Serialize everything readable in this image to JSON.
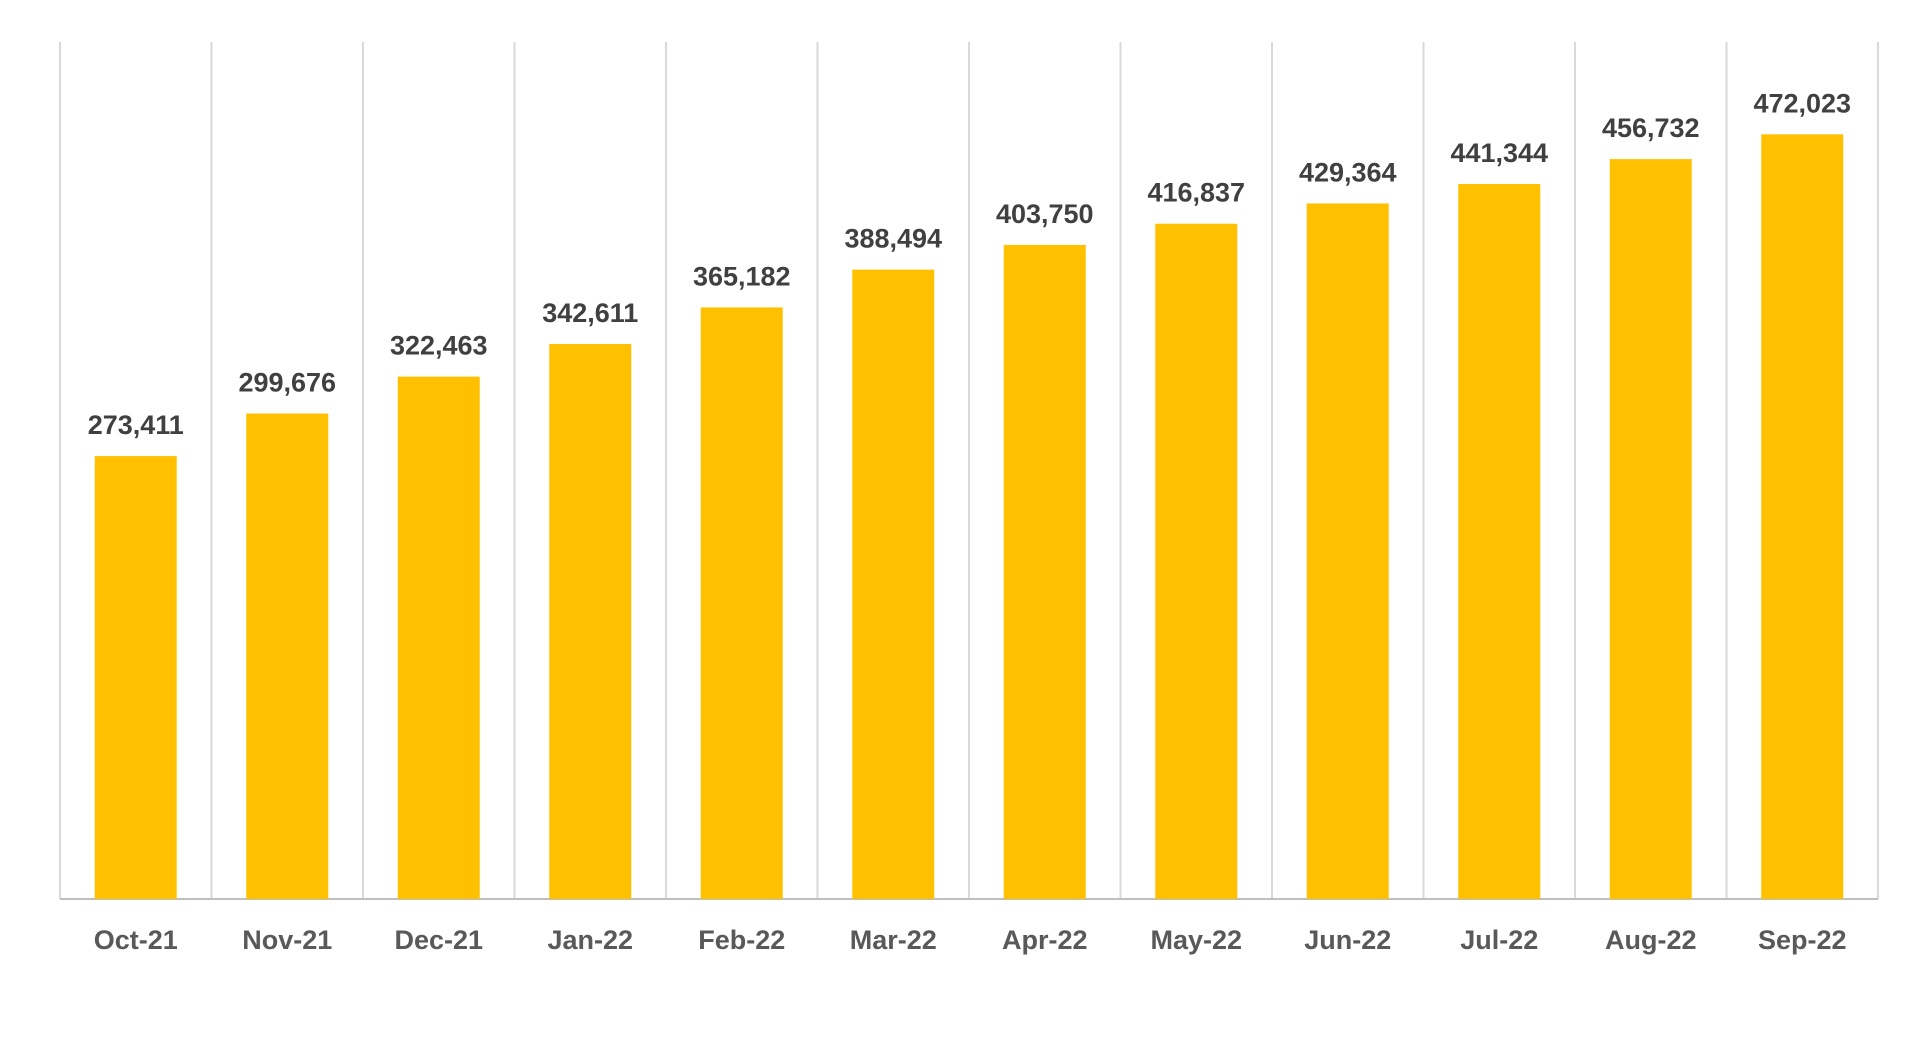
{
  "chart_data": {
    "type": "bar",
    "categories": [
      "Oct-21",
      "Nov-21",
      "Dec-21",
      "Jan-22",
      "Feb-22",
      "Mar-22",
      "Apr-22",
      "May-22",
      "Jun-22",
      "Jul-22",
      "Aug-22",
      "Sep-22"
    ],
    "values": [
      273411,
      299676,
      322463,
      342611,
      365182,
      388494,
      403750,
      416837,
      429364,
      441344,
      456732,
      472023
    ],
    "data_labels": [
      "273,411",
      "299,676",
      "322,463",
      "342,611",
      "365,182",
      "388,494",
      "403,750",
      "416,837",
      "429,364",
      "441,344",
      "456,732",
      "472,023"
    ],
    "ylim": [
      0,
      500000
    ],
    "grid": "vertical",
    "legend": "none",
    "colors": {
      "bar": "#FFC000",
      "label": "#404040",
      "tick": "#595959",
      "grid": "#D9D9D9"
    }
  }
}
